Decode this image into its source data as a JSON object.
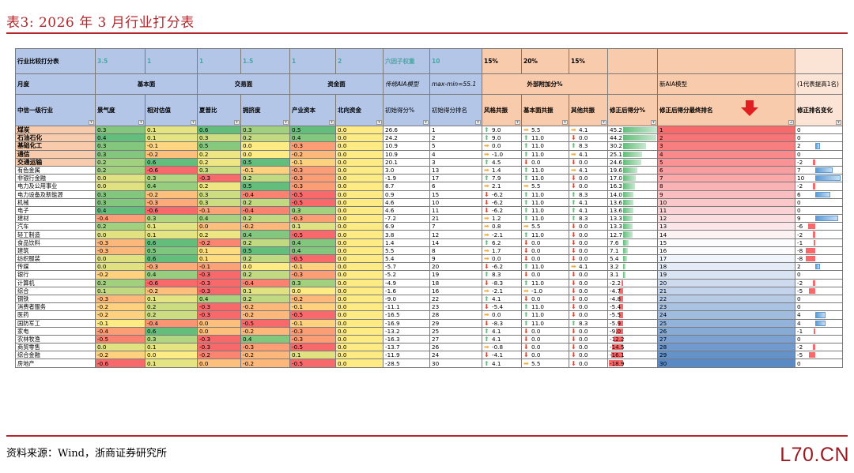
{
  "title": "表3:  2026 年 3 月行业打分表",
  "source": "资料来源：Wind，浙商证券研究所",
  "watermark": "L70.CN",
  "header": {
    "r1": [
      "行业比较打分表",
      "3.5",
      "1",
      "1",
      "1.5",
      "1",
      "2",
      "六因子权重",
      "10",
      "15%",
      "20%",
      "15%",
      "",
      "",
      ""
    ],
    "r2_month": "月度",
    "r2_fund": "基本面",
    "r2_trade": "交易面",
    "r2_capital": "资金面",
    "r2_model": "传统AIA模型",
    "r2_maxmin": "max-min=55.1",
    "r2_extra": "外部附加分%",
    "r2_newaia": "新AIA模型",
    "r2_note": "(1代表提高1名)",
    "r3": [
      "中信一级行业",
      "景气度",
      "相对估值",
      "夏普比",
      "拥挤度",
      "产业资本",
      "北向资金",
      "初始得分%",
      "初始得分排名",
      "风格共振",
      "基本面共振",
      "其他共振",
      "修正后得分%",
      "修正后得分最终排名",
      "修正排名变化"
    ]
  },
  "rows": [
    {
      "name": "煤炭",
      "bold": true,
      "v": [
        "0.3",
        "0.1",
        "0.6",
        "0.3",
        "0.5",
        "0.0",
        "26.6",
        "1"
      ],
      "f": [
        "up",
        "9.0"
      ],
      "b": [
        "rt",
        "5.5"
      ],
      "o": [
        "rt",
        "4.1"
      ],
      "adj": "45.2",
      "fin": "1",
      "chg": "0"
    },
    {
      "name": "石油石化",
      "bold": true,
      "v": [
        "0.4",
        "0.1",
        "0.3",
        "0.2",
        "0.4",
        "0.0",
        "24.2",
        "2"
      ],
      "f": [
        "up",
        "9.0"
      ],
      "b": [
        "up",
        "11.0"
      ],
      "o": [
        "dn",
        "0.0"
      ],
      "adj": "44.2",
      "fin": "2",
      "chg": "0"
    },
    {
      "name": "基础化工",
      "bold": true,
      "v": [
        "0.3",
        "-0.1",
        "0.5",
        "0.0",
        "-0.3",
        "0.0",
        "10.9",
        "5"
      ],
      "f": [
        "rt",
        "0.0"
      ],
      "b": [
        "up",
        "11.0"
      ],
      "o": [
        "up",
        "8.3"
      ],
      "adj": "30.2",
      "fin": "3",
      "chg": "2"
    },
    {
      "name": "通信",
      "bold": true,
      "v": [
        "0.3",
        "-0.2",
        "0.2",
        "0.0",
        "-0.2",
        "0.0",
        "10.9",
        "4"
      ],
      "f": [
        "rt",
        "-1.0"
      ],
      "b": [
        "up",
        "11.0"
      ],
      "o": [
        "rt",
        "4.1"
      ],
      "adj": "25.1",
      "fin": "4",
      "chg": "0"
    },
    {
      "name": "交通运输",
      "bold": true,
      "v": [
        "0.2",
        "0.6",
        "0.2",
        "0.5",
        "-0.1",
        "0.0",
        "20.1",
        "3"
      ],
      "f": [
        "up",
        "4.5"
      ],
      "b": [
        "dn",
        "0.0"
      ],
      "o": [
        "dn",
        "0.0"
      ],
      "adj": "24.6",
      "fin": "5",
      "chg": "-2"
    },
    {
      "name": "有色金属",
      "bold": false,
      "v": [
        "0.2",
        "-0.6",
        "0.3",
        "-0.1",
        "-0.3",
        "0.0",
        "3.0",
        "13"
      ],
      "f": [
        "rt",
        "1.4"
      ],
      "b": [
        "up",
        "11.0"
      ],
      "o": [
        "rt",
        "4.1"
      ],
      "adj": "19.6",
      "fin": "6",
      "chg": "7"
    },
    {
      "name": "非银行金融",
      "bold": false,
      "v": [
        "0.0",
        "0.3",
        "-0.3",
        "0.2",
        "-0.3",
        "0.0",
        "-1.9",
        "17"
      ],
      "f": [
        "up",
        "7.9"
      ],
      "b": [
        "up",
        "11.0"
      ],
      "o": [
        "dn",
        "0.0"
      ],
      "adj": "17.0",
      "fin": "7",
      "chg": "10"
    },
    {
      "name": "电力及公用事业",
      "bold": false,
      "v": [
        "0.0",
        "0.4",
        "0.2",
        "0.5",
        "-0.3",
        "0.0",
        "8.7",
        "6"
      ],
      "f": [
        "rt",
        "2.1"
      ],
      "b": [
        "rt",
        "5.5"
      ],
      "o": [
        "dn",
        "0.0"
      ],
      "adj": "16.3",
      "fin": "8",
      "chg": "-2"
    },
    {
      "name": "电力设备及新能源",
      "bold": false,
      "v": [
        "0.3",
        "-0.2",
        "0.3",
        "-0.4",
        "-0.5",
        "0.0",
        "0.9",
        "15"
      ],
      "f": [
        "dn",
        "-6.2"
      ],
      "b": [
        "up",
        "11.0"
      ],
      "o": [
        "up",
        "8.3"
      ],
      "adj": "14.0",
      "fin": "9",
      "chg": "6"
    },
    {
      "name": "机械",
      "bold": false,
      "v": [
        "0.3",
        "-0.3",
        "0.3",
        "0.2",
        "-0.5",
        "0.0",
        "4.6",
        "10"
      ],
      "f": [
        "dn",
        "-6.2"
      ],
      "b": [
        "up",
        "11.0"
      ],
      "o": [
        "up",
        "4.1"
      ],
      "adj": "13.6",
      "fin": "10",
      "chg": "0"
    },
    {
      "name": "电子",
      "bold": false,
      "v": [
        "0.4",
        "-0.6",
        "-0.1",
        "-0.4",
        "0.3",
        "0.0",
        "4.6",
        "11"
      ],
      "f": [
        "dn",
        "-6.2"
      ],
      "b": [
        "up",
        "11.0"
      ],
      "o": [
        "up",
        "4.1"
      ],
      "adj": "13.6",
      "fin": "11",
      "chg": "0"
    },
    {
      "name": "建材",
      "bold": false,
      "v": [
        "-0.4",
        "0.3",
        "0.4",
        "0.2",
        "-0.3",
        "0.0",
        "-7.2",
        "21"
      ],
      "f": [
        "rt",
        "1.2"
      ],
      "b": [
        "up",
        "11.0"
      ],
      "o": [
        "up",
        "8.3"
      ],
      "adj": "13.3",
      "fin": "12",
      "chg": "9"
    },
    {
      "name": "汽车",
      "bold": false,
      "v": [
        "0.2",
        "0.1",
        "0.0",
        "-0.2",
        "0.1",
        "0.0",
        "6.9",
        "7"
      ],
      "f": [
        "rt",
        "0.8"
      ],
      "b": [
        "rt",
        "5.5"
      ],
      "o": [
        "dn",
        "0.0"
      ],
      "adj": "13.3",
      "fin": "13",
      "chg": "-6"
    },
    {
      "name": "轻工制造",
      "bold": false,
      "v": [
        "0.0",
        "0.1",
        "0.2",
        "0.4",
        "-0.5",
        "0.0",
        "3.8",
        "12"
      ],
      "f": [
        "rt",
        "-2.1"
      ],
      "b": [
        "up",
        "11.0"
      ],
      "o": [
        "dn",
        "0.0"
      ],
      "adj": "12.7",
      "fin": "14",
      "chg": "-2"
    },
    {
      "name": "食品饮料",
      "bold": false,
      "v": [
        "-0.3",
        "0.6",
        "-0.2",
        "0.2",
        "0.4",
        "0.0",
        "1.4",
        "14"
      ],
      "f": [
        "up",
        "6.2"
      ],
      "b": [
        "dn",
        "0.0"
      ],
      "o": [
        "dn",
        "0.0"
      ],
      "adj": "7.6",
      "fin": "15",
      "chg": "-1"
    },
    {
      "name": "建筑",
      "bold": false,
      "v": [
        "-0.3",
        "0.5",
        "0.1",
        "0.5",
        "0.4",
        "0.0",
        "5.5",
        "8"
      ],
      "f": [
        "rt",
        "1.7"
      ],
      "b": [
        "dn",
        "0.0"
      ],
      "o": [
        "dn",
        "0.0"
      ],
      "adj": "7.1",
      "fin": "16",
      "chg": "-8"
    },
    {
      "name": "纺织服装",
      "bold": false,
      "v": [
        "0.0",
        "0.6",
        "0.1",
        "0.2",
        "-0.5",
        "0.0",
        "5.4",
        "9"
      ],
      "f": [
        "rt",
        "0.0"
      ],
      "b": [
        "dn",
        "0.0"
      ],
      "o": [
        "dn",
        "0.0"
      ],
      "adj": "5.4",
      "fin": "17",
      "chg": "-8"
    },
    {
      "name": "传媒",
      "bold": false,
      "v": [
        "0.0",
        "-0.3",
        "-0.1",
        "0.0",
        "-0.1",
        "0.0",
        "-5.7",
        "20"
      ],
      "f": [
        "dn",
        "-6.2"
      ],
      "b": [
        "up",
        "11.0"
      ],
      "o": [
        "rt",
        "4.1"
      ],
      "adj": "3.2",
      "fin": "18",
      "chg": "2"
    },
    {
      "name": "银行",
      "bold": false,
      "v": [
        "-0.2",
        "0.4",
        "-0.3",
        "0.2",
        "-0.3",
        "0.0",
        "-5.2",
        "19"
      ],
      "f": [
        "up",
        "8.3"
      ],
      "b": [
        "dn",
        "0.0"
      ],
      "o": [
        "dn",
        "0.0"
      ],
      "adj": "3.1",
      "fin": "19",
      "chg": "0"
    },
    {
      "name": "计算机",
      "bold": false,
      "v": [
        "0.2",
        "-0.6",
        "-0.3",
        "-0.4",
        "0.3",
        "0.0",
        "-4.9",
        "18"
      ],
      "f": [
        "dn",
        "-8.3"
      ],
      "b": [
        "up",
        "11.0"
      ],
      "o": [
        "dn",
        "0.0"
      ],
      "adj": "-2.2",
      "fin": "20",
      "chg": "-2"
    },
    {
      "name": "综合",
      "bold": false,
      "v": [
        "0.1",
        "-0.2",
        "-0.3",
        "0.1",
        "0.0",
        "0.0",
        "-1.6",
        "16"
      ],
      "f": [
        "rt",
        "-2.1"
      ],
      "b": [
        "rt",
        "-1.0"
      ],
      "o": [
        "dn",
        "0.0"
      ],
      "adj": "-4.7",
      "fin": "21",
      "chg": "-5"
    },
    {
      "name": "钢铁",
      "bold": false,
      "v": [
        "-0.3",
        "0.1",
        "0.4",
        "0.2",
        "-0.2",
        "0.0",
        "-9.0",
        "22"
      ],
      "f": [
        "up",
        "4.1"
      ],
      "b": [
        "dn",
        "0.0"
      ],
      "o": [
        "dn",
        "0.0"
      ],
      "adj": "-4.8",
      "fin": "22",
      "chg": "0"
    },
    {
      "name": "消费者服务",
      "bold": false,
      "v": [
        "-0.2",
        "0.2",
        "-0.3",
        "-0.2",
        "-0.1",
        "0.0",
        "-11.1",
        "23"
      ],
      "f": [
        "dn",
        "-5.4"
      ],
      "b": [
        "up",
        "11.0"
      ],
      "o": [
        "dn",
        "0.0"
      ],
      "adj": "-5.4",
      "fin": "23",
      "chg": "0"
    },
    {
      "name": "医药",
      "bold": false,
      "v": [
        "-0.2",
        "0.2",
        "-0.3",
        "-0.2",
        "-0.5",
        "0.0",
        "-16.5",
        "28"
      ],
      "f": [
        "rt",
        "0.0"
      ],
      "b": [
        "up",
        "11.0"
      ],
      "o": [
        "dn",
        "0.0"
      ],
      "adj": "-5.5",
      "fin": "24",
      "chg": "4"
    },
    {
      "name": "国防军工",
      "bold": false,
      "v": [
        "-0.1",
        "-0.4",
        "0.0",
        "-0.5",
        "-0.1",
        "0.0",
        "-16.9",
        "29"
      ],
      "f": [
        "dn",
        "-8.3"
      ],
      "b": [
        "up",
        "11.0"
      ],
      "o": [
        "up",
        "8.3"
      ],
      "adj": "-5.9",
      "fin": "25",
      "chg": "4"
    },
    {
      "name": "家电",
      "bold": false,
      "v": [
        "-0.4",
        "0.6",
        "0.0",
        "-0.2",
        "-0.3",
        "0.0",
        "-13.2",
        "25"
      ],
      "f": [
        "up",
        "4.1"
      ],
      "b": [
        "dn",
        "0.0"
      ],
      "o": [
        "dn",
        "0.0"
      ],
      "adj": "-9.0",
      "fin": "26",
      "chg": "-1"
    },
    {
      "name": "农林牧渔",
      "bold": false,
      "v": [
        "-0.5",
        "0.3",
        "-0.3",
        "0.4",
        "-0.3",
        "0.0",
        "-16.3",
        "27"
      ],
      "f": [
        "up",
        "4.1"
      ],
      "b": [
        "dn",
        "0.0"
      ],
      "o": [
        "dn",
        "0.0"
      ],
      "adj": "-12.2",
      "fin": "27",
      "chg": "0"
    },
    {
      "name": "商贸零售",
      "bold": false,
      "v": [
        "0.0",
        "0.1",
        "-0.3",
        "-0.3",
        "-0.5",
        "0.0",
        "-13.7",
        "26"
      ],
      "f": [
        "rt",
        "-0.8"
      ],
      "b": [
        "dn",
        "0.0"
      ],
      "o": [
        "dn",
        "0.0"
      ],
      "adj": "-14.5",
      "fin": "28",
      "chg": "-2"
    },
    {
      "name": "综合金融",
      "bold": false,
      "v": [
        "-0.2",
        "0.0",
        "-0.2",
        "-0.2",
        "0.1",
        "0.0",
        "-11.9",
        "24"
      ],
      "f": [
        "dn",
        "-4.1"
      ],
      "b": [
        "dn",
        "0.0"
      ],
      "o": [
        "dn",
        "0.0"
      ],
      "adj": "-16.1",
      "fin": "29",
      "chg": "-5"
    },
    {
      "name": "房地产",
      "bold": false,
      "v": [
        "-0.6",
        "0.1",
        "0.0",
        "-0.2",
        "-0.5",
        "0.0",
        "-28.5",
        "30"
      ],
      "f": [
        "up",
        "4.1"
      ],
      "b": [
        "rt",
        "5.5"
      ],
      "o": [
        "dn",
        "0.0"
      ],
      "adj": "-18.9",
      "fin": "30",
      "chg": "0"
    }
  ]
}
